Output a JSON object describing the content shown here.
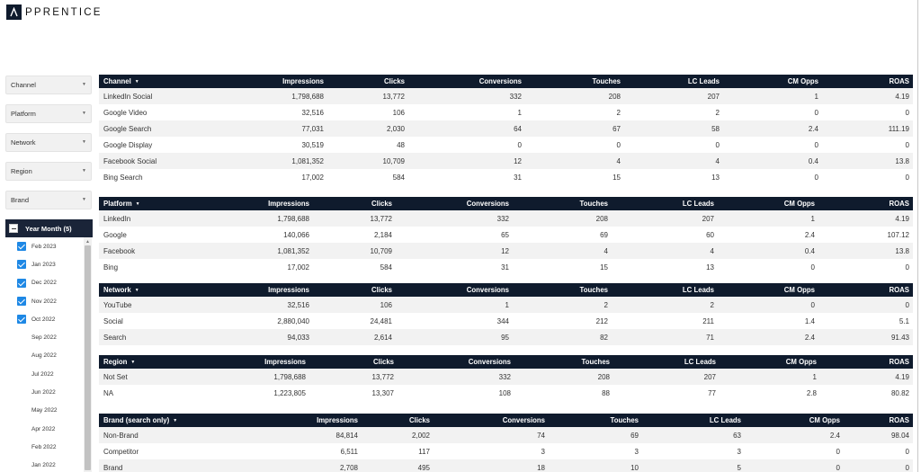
{
  "brand": {
    "logo_text": "PPRENTICE",
    "logo_icon": "apprentice-a-icon"
  },
  "filters": [
    "Channel",
    "Platform",
    "Network",
    "Region",
    "Brand"
  ],
  "year_month": {
    "title": "Year Month (5)",
    "items": [
      {
        "label": "Feb 2023",
        "checked": true
      },
      {
        "label": "Jan 2023",
        "checked": true
      },
      {
        "label": "Dec 2022",
        "checked": true
      },
      {
        "label": "Nov 2022",
        "checked": true
      },
      {
        "label": "Oct 2022",
        "checked": true
      },
      {
        "label": "Sep 2022",
        "checked": false
      },
      {
        "label": "Aug 2022",
        "checked": false
      },
      {
        "label": "Jul 2022",
        "checked": false
      },
      {
        "label": "Jun 2022",
        "checked": false
      },
      {
        "label": "May 2022",
        "checked": false
      },
      {
        "label": "Apr 2022",
        "checked": false
      },
      {
        "label": "Feb 2022",
        "checked": false
      },
      {
        "label": "Jan 2022",
        "checked": false
      }
    ]
  },
  "tables": [
    {
      "id": "channel",
      "columns": [
        "Channel",
        "Impressions",
        "Clicks",
        "Conversions",
        "Touches",
        "LC Leads",
        "CM Opps",
        "ROAS"
      ],
      "rows": [
        [
          "LinkedIn Social",
          "1,798,688",
          "13,772",
          "332",
          "208",
          "207",
          "1",
          "4.19"
        ],
        [
          "Google Video",
          "32,516",
          "106",
          "1",
          "2",
          "2",
          "0",
          "0"
        ],
        [
          "Google Search",
          "77,031",
          "2,030",
          "64",
          "67",
          "58",
          "2.4",
          "111.19"
        ],
        [
          "Google Display",
          "30,519",
          "48",
          "0",
          "0",
          "0",
          "0",
          "0"
        ],
        [
          "Facebook Social",
          "1,081,352",
          "10,709",
          "12",
          "4",
          "4",
          "0.4",
          "13.8"
        ],
        [
          "Bing Search",
          "17,002",
          "584",
          "31",
          "15",
          "13",
          "0",
          "0"
        ]
      ]
    },
    {
      "id": "platform",
      "columns": [
        "Platform",
        "Impressions",
        "Clicks",
        "Conversions",
        "Touches",
        "LC Leads",
        "CM Opps",
        "ROAS"
      ],
      "rows": [
        [
          "LinkedIn",
          "1,798,688",
          "13,772",
          "332",
          "208",
          "207",
          "1",
          "4.19"
        ],
        [
          "Google",
          "140,066",
          "2,184",
          "65",
          "69",
          "60",
          "2.4",
          "107.12"
        ],
        [
          "Facebook",
          "1,081,352",
          "10,709",
          "12",
          "4",
          "4",
          "0.4",
          "13.8"
        ],
        [
          "Bing",
          "17,002",
          "584",
          "31",
          "15",
          "13",
          "0",
          "0"
        ]
      ]
    },
    {
      "id": "network",
      "columns": [
        "Network",
        "Impressions",
        "Clicks",
        "Conversions",
        "Touches",
        "LC Leads",
        "CM Opps",
        "ROAS"
      ],
      "rows": [
        [
          "YouTube",
          "32,516",
          "106",
          "1",
          "2",
          "2",
          "0",
          "0"
        ],
        [
          "Social",
          "2,880,040",
          "24,481",
          "344",
          "212",
          "211",
          "1.4",
          "5.1"
        ],
        [
          "Search",
          "94,033",
          "2,614",
          "95",
          "82",
          "71",
          "2.4",
          "91.43"
        ]
      ]
    },
    {
      "id": "region",
      "columns": [
        "Region",
        "Impressions",
        "Clicks",
        "Conversions",
        "Touches",
        "LC Leads",
        "CM Opps",
        "ROAS"
      ],
      "rows": [
        [
          "Not Set",
          "1,798,688",
          "13,772",
          "332",
          "208",
          "207",
          "1",
          "4.19"
        ],
        [
          "NA",
          "1,223,805",
          "13,307",
          "108",
          "88",
          "77",
          "2.8",
          "80.82"
        ]
      ]
    },
    {
      "id": "brand",
      "columns": [
        "Brand (search only)",
        "Impressions",
        "Clicks",
        "Conversions",
        "Touches",
        "LC Leads",
        "CM Opps",
        "ROAS"
      ],
      "rows": [
        [
          "Non-Brand",
          "84,814",
          "2,002",
          "74",
          "69",
          "63",
          "2.4",
          "98.04"
        ],
        [
          "Competitor",
          "6,511",
          "117",
          "3",
          "3",
          "3",
          "0",
          "0"
        ],
        [
          "Brand",
          "2,708",
          "495",
          "18",
          "10",
          "5",
          "0",
          "0"
        ]
      ]
    }
  ]
}
